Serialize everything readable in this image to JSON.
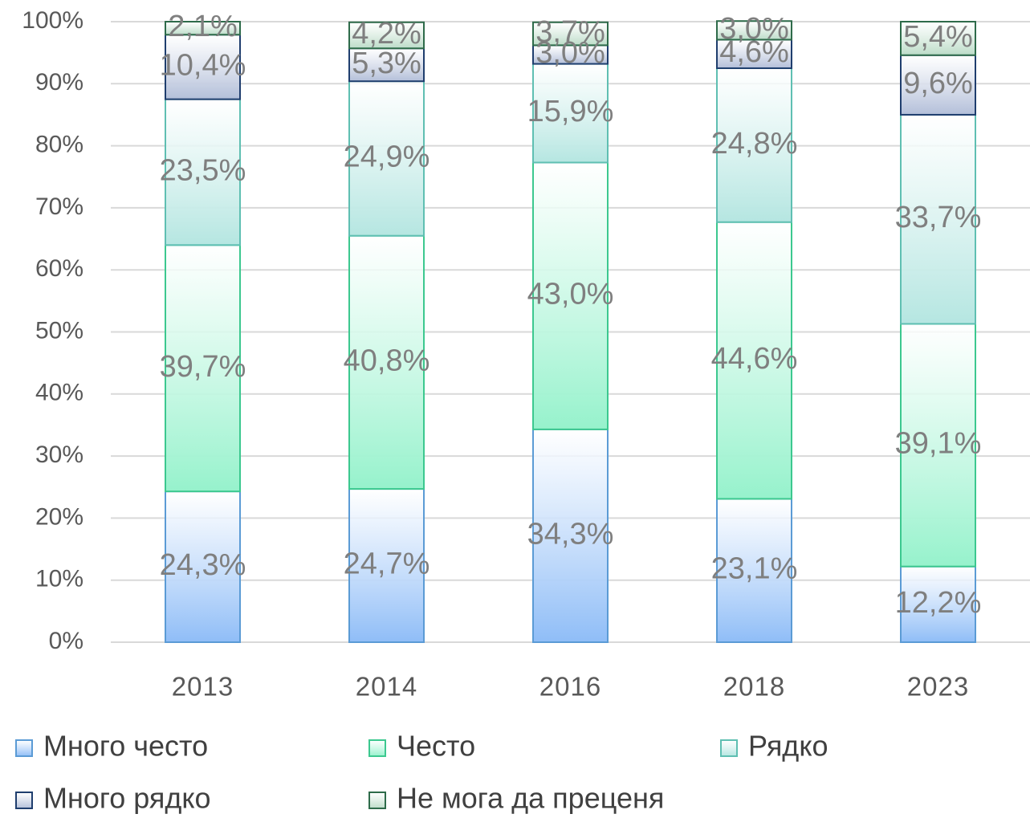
{
  "chart_data": {
    "type": "stacked_bar",
    "categories": [
      "2013",
      "2014",
      "2016",
      "2018",
      "2023"
    ],
    "series": [
      {
        "name": "Много често",
        "color": "#8fbdf7",
        "border": "#5b9bd5",
        "values": [
          24.3,
          24.7,
          34.3,
          23.1,
          12.2
        ],
        "value_labels": [
          "24,3%",
          "24,7%",
          "34,3%",
          "23,1%",
          "12,2%"
        ]
      },
      {
        "name": "Често",
        "color": "#96f2cc",
        "border": "#3cc88f",
        "values": [
          39.7,
          40.8,
          43.0,
          44.6,
          39.1
        ],
        "value_labels": [
          "39,7%",
          "40,8%",
          "43,0%",
          "44,6%",
          "39,1%"
        ]
      },
      {
        "name": "Рядко",
        "color": "#b5e6e1",
        "border": "#5fbfb2",
        "values": [
          23.5,
          24.9,
          15.9,
          24.8,
          33.7
        ],
        "value_labels": [
          "23,5%",
          "24,9%",
          "15,9%",
          "24,8%",
          "33,7%"
        ]
      },
      {
        "name": "Много рядко",
        "color": "#b3bfd9",
        "border": "#1f3e6e",
        "values": [
          10.4,
          5.3,
          3.0,
          4.6,
          9.6
        ],
        "value_labels": [
          "10,4%",
          "5,3%",
          "3,0%",
          "4,6%",
          "9,6%"
        ]
      },
      {
        "name": "Не мога да преценя",
        "color": "#bcdcc8",
        "border": "#2e6b4a",
        "values": [
          2.1,
          4.2,
          3.7,
          3.0,
          5.4
        ],
        "value_labels": [
          "2,1%",
          "4,2%",
          "3,7%",
          "3,0%",
          "5,4%"
        ]
      }
    ],
    "ylim": [
      0,
      100
    ],
    "yticks": [
      {
        "value": 0,
        "label": "0%"
      },
      {
        "value": 10,
        "label": "10%"
      },
      {
        "value": 20,
        "label": "20%"
      },
      {
        "value": 30,
        "label": "30%"
      },
      {
        "value": 40,
        "label": "40%"
      },
      {
        "value": 50,
        "label": "50%"
      },
      {
        "value": 60,
        "label": "60%"
      },
      {
        "value": 70,
        "label": "70%"
      },
      {
        "value": 80,
        "label": "80%"
      },
      {
        "value": 90,
        "label": "90%"
      },
      {
        "value": 100,
        "label": "100%"
      }
    ],
    "grid": true,
    "legend": "bottom"
  }
}
